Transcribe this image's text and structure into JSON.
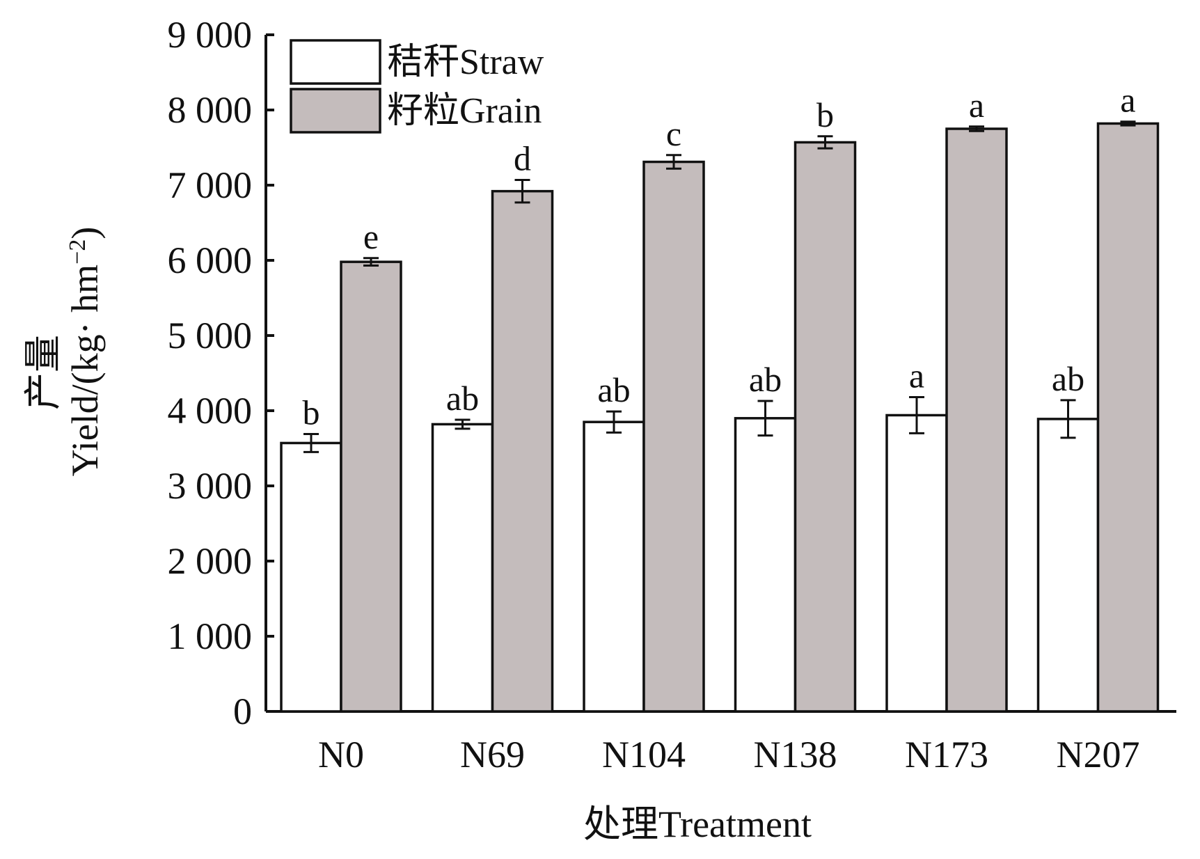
{
  "chart_data": {
    "type": "bar",
    "xlabel": "处理Treatment",
    "ylabel_cn": "产量",
    "ylabel_en": "Yield/(kg· hm",
    "ylabel_sup": "−2",
    "ylabel_close": ")",
    "ylim": [
      0,
      9000
    ],
    "yticks": [
      0,
      1000,
      2000,
      3000,
      4000,
      5000,
      6000,
      7000,
      8000,
      9000
    ],
    "ytick_labels": [
      "0",
      "1 000",
      "2 000",
      "3 000",
      "4 000",
      "5 000",
      "6 000",
      "7 000",
      "8 000",
      "9 000"
    ],
    "categories": [
      "N0",
      "N69",
      "N104",
      "N138",
      "N173",
      "N207"
    ],
    "series": [
      {
        "name": "秸秆Straw",
        "color": "#ffffff",
        "values": [
          3570,
          3820,
          3850,
          3900,
          3940,
          3890
        ],
        "errors": [
          120,
          60,
          140,
          230,
          240,
          250
        ],
        "significance": [
          "b",
          "ab",
          "ab",
          "ab",
          "a",
          "ab"
        ]
      },
      {
        "name": "籽粒Grain",
        "color": "#c4bcbc",
        "values": [
          5980,
          6920,
          7310,
          7570,
          7750,
          7820
        ],
        "errors": [
          50,
          150,
          90,
          80,
          30,
          25
        ],
        "significance": [
          "e",
          "d",
          "c",
          "b",
          "a",
          "a"
        ]
      }
    ],
    "legend_position": "top-left",
    "grid": false
  }
}
